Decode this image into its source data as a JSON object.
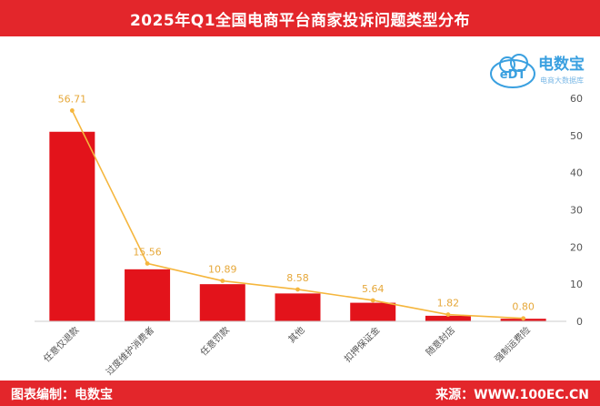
{
  "header": {
    "title": "2025年Q1全国电商平台商家投诉问题类型分布"
  },
  "footer": {
    "editor": "图表编制：电数宝",
    "source": "来源：WWW.100EC.CN"
  },
  "logo": {
    "icon": "cloud-logo-icon",
    "logo_text": "eDT",
    "brand": "电数宝",
    "tagline": "电商大数据库"
  },
  "chart_data": {
    "type": "bar",
    "title": "2025年Q1全国电商平台商家投诉问题类型分布",
    "categories": [
      "任意仅退款",
      "过度维护消费者",
      "任意罚款",
      "其他",
      "扣押保证金",
      "随意封店",
      "强制运费险"
    ],
    "series": [
      {
        "type": "bar",
        "values": [
          51,
          14,
          10,
          7.5,
          5,
          1.5,
          0.7
        ],
        "color": "#e3131b"
      },
      {
        "type": "line",
        "values": [
          56.71,
          15.56,
          10.89,
          8.58,
          5.64,
          1.82,
          0.8
        ],
        "labels": [
          "56.71",
          "15.56",
          "10.89",
          "8.58",
          "5.64",
          "1.82",
          "0.80"
        ],
        "color": "#f5b63d"
      }
    ],
    "ylim": [
      0,
      60
    ],
    "yticks": [
      0,
      10,
      20,
      30,
      40,
      50,
      60
    ],
    "y_axis_side": "right",
    "grid": false,
    "legend": "none"
  }
}
